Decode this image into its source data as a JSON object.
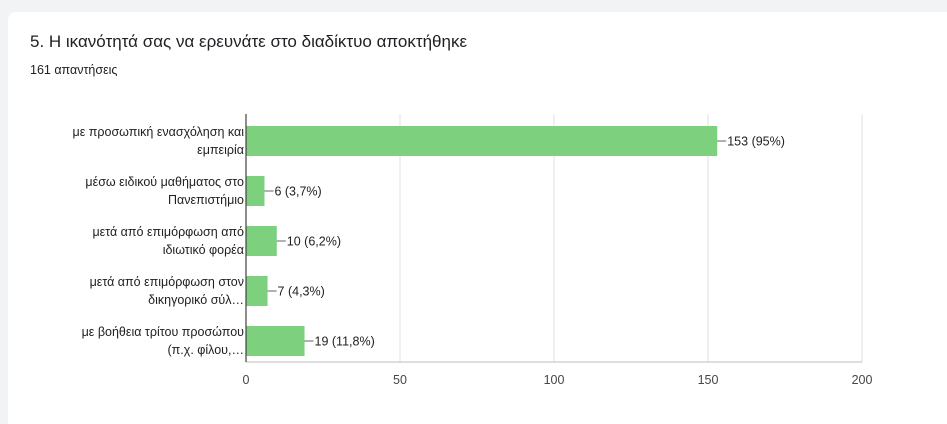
{
  "question": {
    "title": "5. Η ικανότητά σας να ερευνάτε στο διαδίκτυο αποκτήθηκε",
    "responses": "161 απαντήσεις"
  },
  "chart_data": {
    "type": "bar",
    "orientation": "horizontal",
    "categories": [
      [
        "με προσωπική ενασχόληση και",
        "εμπειρία"
      ],
      [
        "μέσω ειδικού μαθήματος στο",
        "Πανεπιστήμιο"
      ],
      [
        "μετά από επιμόρφωση από",
        "ιδιωτικό φορέα"
      ],
      [
        "μετά από επιμόρφωση στον",
        "δικηγορικό σύλ…"
      ],
      [
        "με βοήθεια τρίτου προσώπου",
        "(π.χ. φίλου,…"
      ]
    ],
    "values": [
      153,
      6,
      10,
      7,
      19
    ],
    "data_labels": [
      "153 (95%)",
      "6 (3,7%)",
      "10 (6,2%)",
      "7 (4,3%)",
      "19 (11,8%)"
    ],
    "xlim": [
      0,
      200
    ],
    "xticks": [
      0,
      50,
      100,
      150,
      200
    ],
    "bar_color": "#7cd07e",
    "grid": true,
    "legend": "none"
  }
}
